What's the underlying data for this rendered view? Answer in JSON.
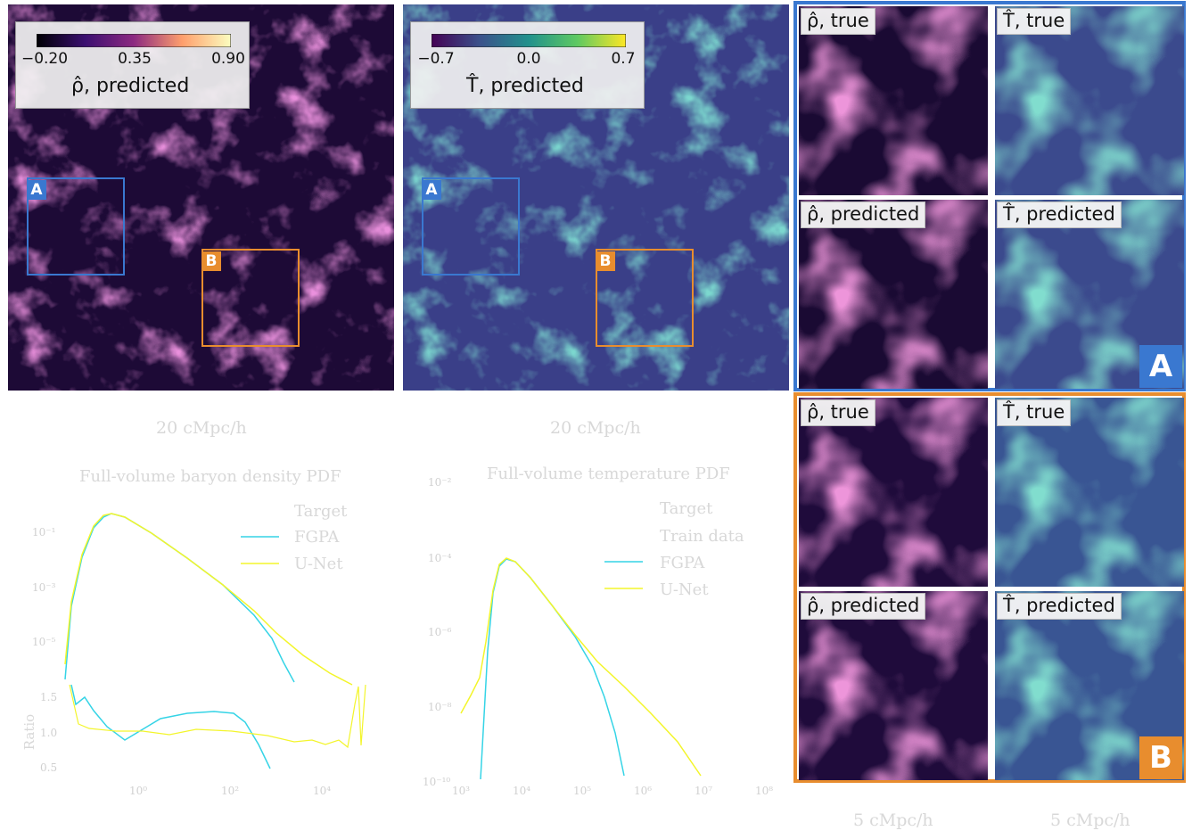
{
  "colors": {
    "roi_a": "#3a78d0",
    "roi_b": "#e88d2e",
    "density_line": "#35d4e6",
    "unet_line": "#f3f52b",
    "faint_text": "#d6d6d6"
  },
  "density_map": {
    "colorbar": {
      "ticks": [
        "−0.20",
        "0.35",
        "0.90"
      ],
      "label": "ρ̂,  predicted"
    },
    "roi_a_tag": "A",
    "roi_b_tag": "B",
    "scale_label": "20 cMpc/h"
  },
  "temperature_map": {
    "colorbar": {
      "ticks": [
        "−0.7",
        "0.0",
        "0.7"
      ],
      "label": "T̂,  predicted"
    },
    "roi_a_tag": "A",
    "roi_b_tag": "B",
    "scale_label": "20 cMpc/h"
  },
  "zoom_panels": {
    "a": {
      "tag": "A",
      "labels": [
        "ρ̂, true",
        "T̂, true",
        "ρ̂, predicted",
        "T̂, predicted"
      ]
    },
    "b": {
      "tag": "B",
      "labels": [
        "ρ̂, true",
        "T̂, true",
        "ρ̂, predicted",
        "T̂, predicted"
      ]
    },
    "scale_left": "5 cMpc/h",
    "scale_right": "5 cMpc/h"
  },
  "density_pdf": {
    "title": "Full-volume baryon density PDF",
    "legend": [
      "Target",
      "FGPA",
      "U-Net"
    ],
    "y_ticks": [
      "10⁻¹",
      "10⁻³",
      "10⁻⁵"
    ],
    "ratio_ticks": [
      "1.5",
      "1.0",
      "0.5"
    ],
    "ratio_label": "Ratio",
    "x_ticks": [
      "10⁰",
      "10²",
      "10⁴"
    ]
  },
  "temperature_pdf": {
    "title": "Full-volume temperature PDF",
    "legend": [
      "Target",
      "Train data",
      "FGPA",
      "U-Net"
    ],
    "y_ticks": [
      "10⁻²",
      "10⁻⁴",
      "10⁻⁶",
      "10⁻⁸",
      "10⁻¹⁰"
    ],
    "x_ticks": [
      "10³",
      "10⁴",
      "10⁵",
      "10⁶",
      "10⁷",
      "10⁸"
    ]
  }
}
